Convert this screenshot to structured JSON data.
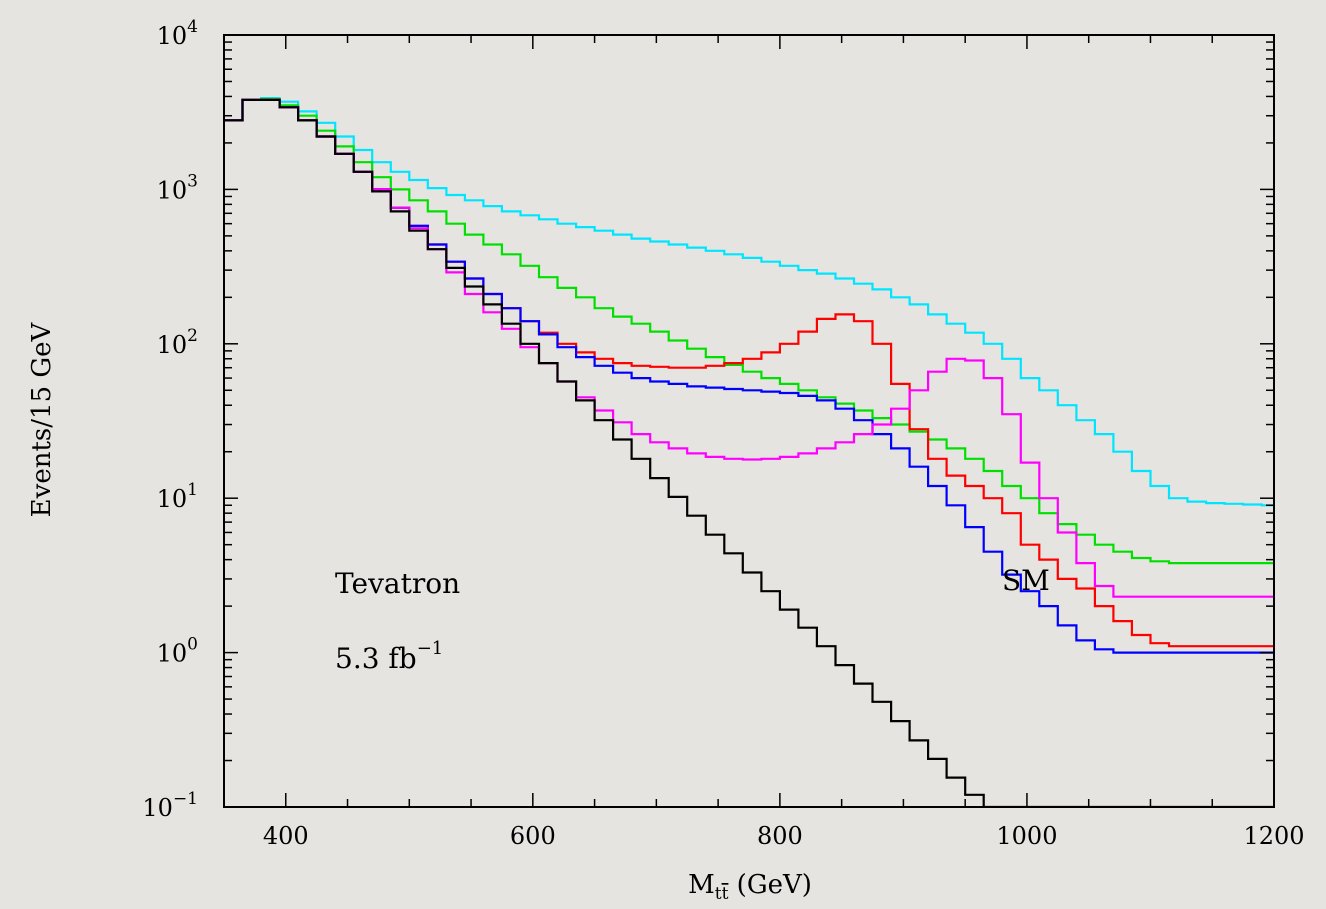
{
  "chart_data": {
    "type": "line",
    "step": true,
    "xlabel": {
      "base": "M",
      "sub": "t",
      "sub_bar": "t",
      "unit": " (GeV)"
    },
    "ylabel": "Events/15 GeV",
    "xlim": [
      350,
      1200
    ],
    "ylim": [
      0.1,
      10000
    ],
    "yscale": "log",
    "x_ticks": [
      400,
      600,
      800,
      1000,
      1200
    ],
    "x_minor_step": 50,
    "y_ticks": [
      {
        "value": 0.1,
        "base": "10",
        "exp": "−1"
      },
      {
        "value": 1,
        "base": "10",
        "exp": "0"
      },
      {
        "value": 10,
        "base": "10",
        "exp": "1"
      },
      {
        "value": 100,
        "base": "10",
        "exp": "2"
      },
      {
        "value": 1000,
        "base": "10",
        "exp": "3"
      },
      {
        "value": 10000,
        "base": "10",
        "exp": "4"
      }
    ],
    "bin_start": 350,
    "bin_width": 15,
    "annotations": [
      {
        "id": "tevatron",
        "text": "Tevatron"
      },
      {
        "id": "lumi",
        "text": "5.3 fb",
        "sup": "−1"
      },
      {
        "id": "sm",
        "text": "SM"
      }
    ],
    "series": [
      {
        "color": "#00e5ff",
        "values": [
          2800,
          3800,
          3900,
          3700,
          3200,
          2700,
          2200,
          1800,
          1500,
          1300,
          1150,
          1020,
          920,
          850,
          780,
          720,
          680,
          640,
          600,
          570,
          540,
          510,
          480,
          460,
          440,
          420,
          400,
          380,
          360,
          340,
          320,
          300,
          285,
          265,
          245,
          225,
          200,
          180,
          155,
          135,
          118,
          100,
          80,
          60,
          50,
          40,
          32,
          26,
          20,
          15,
          12,
          10,
          9.5,
          9.3,
          9.2,
          9.1,
          9,
          9,
          9,
          9
        ]
      },
      {
        "color": "#00e000",
        "values": [
          2800,
          3800,
          3850,
          3500,
          3000,
          2400,
          1900,
          1500,
          1200,
          1000,
          850,
          720,
          600,
          510,
          440,
          380,
          320,
          270,
          230,
          200,
          170,
          150,
          135,
          120,
          105,
          93,
          82,
          73,
          66,
          60,
          55,
          50,
          45,
          41,
          37,
          33,
          30,
          27,
          24,
          21,
          18,
          15,
          12,
          10,
          8,
          6.8,
          5.8,
          5,
          4.5,
          4.1,
          3.9,
          3.8,
          3.8,
          3.8,
          3.8,
          3.8,
          3.8,
          3.8,
          3.8,
          3.8
        ]
      },
      {
        "color": "#ff0000",
        "values": [
          2800,
          3800,
          3800,
          3400,
          2800,
          2200,
          1700,
          1300,
          1000,
          760,
          580,
          440,
          340,
          265,
          210,
          170,
          140,
          118,
          100,
          88,
          80,
          75,
          72,
          71,
          70,
          70,
          72,
          75,
          80,
          88,
          100,
          120,
          145,
          155,
          140,
          100,
          55,
          28,
          18,
          14,
          12,
          10,
          8,
          5,
          4,
          3,
          2.6,
          2,
          1.6,
          1.3,
          1.15,
          1.1,
          1.1,
          1.1,
          1.1,
          1.1,
          1.1,
          1.1,
          1.1,
          1.1
        ]
      },
      {
        "color": "#0000ff",
        "values": [
          2800,
          3800,
          3800,
          3400,
          2800,
          2200,
          1700,
          1300,
          1000,
          760,
          580,
          440,
          340,
          265,
          210,
          170,
          140,
          115,
          95,
          82,
          72,
          65,
          60,
          57,
          55,
          53,
          52,
          51,
          50,
          49,
          48,
          46,
          43,
          38,
          32,
          26,
          21,
          16,
          12,
          9,
          6.5,
          4.5,
          3.2,
          2.5,
          2,
          1.5,
          1.2,
          1.05,
          1,
          1,
          1,
          1,
          1,
          1,
          1,
          1,
          1,
          1,
          1,
          1
        ]
      },
      {
        "color": "#ff00ff",
        "values": [
          2800,
          3800,
          3800,
          3400,
          2800,
          2200,
          1700,
          1300,
          1000,
          760,
          560,
          410,
          290,
          210,
          160,
          125,
          95,
          75,
          57,
          45,
          37,
          31,
          26,
          23,
          21,
          19.5,
          18.5,
          18,
          17.8,
          18,
          18.5,
          19.5,
          21,
          23,
          26,
          30,
          38,
          50,
          66,
          80,
          78,
          60,
          35,
          17,
          10,
          6,
          3.8,
          2.7,
          2.3,
          2.3,
          2.3,
          2.3,
          2.3,
          2.3,
          2.3,
          2.3,
          2.3,
          2.3,
          2.3,
          2.3
        ]
      },
      {
        "color": "#000000",
        "values": [
          2800,
          3800,
          3800,
          3400,
          2800,
          2200,
          1700,
          1300,
          970,
          720,
          540,
          410,
          310,
          235,
          180,
          135,
          100,
          75,
          57,
          43,
          32,
          24,
          18,
          13.5,
          10.2,
          7.7,
          5.8,
          4.4,
          3.3,
          2.5,
          1.9,
          1.45,
          1.1,
          0.83,
          0.63,
          0.48,
          0.36,
          0.27,
          0.205,
          0.155,
          0.12,
          0.1,
          0.1,
          0.1,
          0.1,
          0.1,
          0.1,
          0.1,
          0.1,
          0.1,
          0.1,
          0.1,
          0.1,
          0.1,
          0.1,
          0.1,
          0.1,
          0.1,
          0.1,
          0.1
        ]
      }
    ]
  }
}
